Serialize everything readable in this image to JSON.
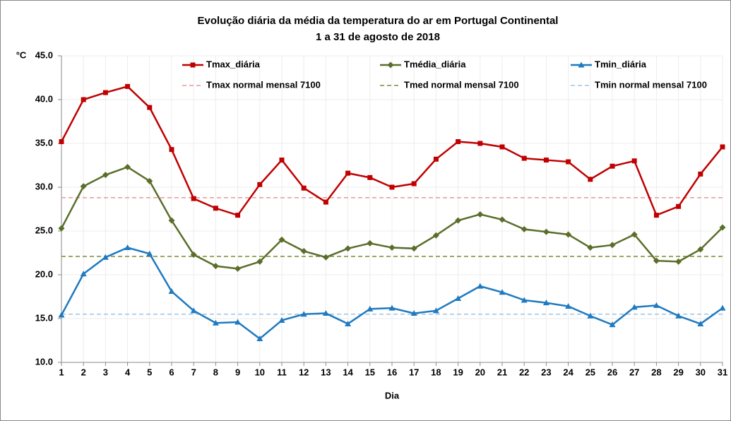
{
  "chart_data": {
    "type": "line",
    "title": "Evolução diária da média da temperatura do ar em Portugal Continental",
    "subtitle": "1 a 31 de agosto de 2018",
    "x_label": "Dia",
    "y_unit": "°C",
    "x": [
      1,
      2,
      3,
      4,
      5,
      6,
      7,
      8,
      9,
      10,
      11,
      12,
      13,
      14,
      15,
      16,
      17,
      18,
      19,
      20,
      21,
      22,
      23,
      24,
      25,
      26,
      27,
      28,
      29,
      30,
      31
    ],
    "xlim": [
      1,
      31
    ],
    "xticks": [
      1,
      2,
      3,
      4,
      5,
      6,
      7,
      8,
      9,
      10,
      11,
      12,
      13,
      14,
      15,
      16,
      17,
      18,
      19,
      20,
      21,
      22,
      23,
      24,
      25,
      26,
      27,
      28,
      29,
      30,
      31
    ],
    "ylim": [
      10,
      45
    ],
    "yticks": [
      {
        "value": 10,
        "label": "10.0"
      },
      {
        "value": 15,
        "label": "15.0"
      },
      {
        "value": 20,
        "label": "20.0"
      },
      {
        "value": 25,
        "label": "25.0"
      },
      {
        "value": 30,
        "label": "30.0"
      },
      {
        "value": 35,
        "label": "35.0"
      },
      {
        "value": 40,
        "label": "40.0"
      },
      {
        "value": 45,
        "label": "45.0"
      }
    ],
    "grid": true,
    "series": [
      {
        "name": "Tmax_diária",
        "color": "#c00000",
        "marker": "square",
        "values": [
          35.2,
          40.0,
          40.8,
          41.5,
          39.1,
          34.3,
          28.7,
          27.6,
          26.8,
          30.3,
          33.1,
          29.9,
          28.3,
          31.6,
          31.1,
          30.0,
          30.4,
          33.2,
          35.2,
          35.0,
          34.6,
          33.3,
          33.1,
          32.9,
          30.9,
          32.4,
          33.0,
          26.8,
          27.8,
          31.5,
          34.6
        ]
      },
      {
        "name": "Tmédia_diária",
        "color": "#5a6e2a",
        "marker": "diamond",
        "values": [
          25.3,
          30.1,
          31.4,
          32.3,
          30.7,
          26.2,
          22.3,
          21.0,
          20.7,
          21.5,
          24.0,
          22.7,
          22.0,
          23.0,
          23.6,
          23.1,
          23.0,
          24.5,
          26.2,
          26.9,
          26.3,
          25.2,
          24.9,
          24.6,
          23.1,
          23.4,
          24.6,
          21.6,
          21.5,
          22.9,
          25.4
        ]
      },
      {
        "name": "Tmin_diária",
        "color": "#1f7ac0",
        "marker": "triangle",
        "values": [
          15.4,
          20.1,
          22.0,
          23.1,
          22.4,
          18.1,
          15.9,
          14.5,
          14.6,
          12.7,
          14.8,
          15.5,
          15.6,
          14.4,
          16.1,
          16.2,
          15.6,
          15.9,
          17.3,
          18.7,
          18.0,
          17.1,
          16.8,
          16.4,
          15.3,
          14.3,
          16.3,
          16.5,
          15.3,
          14.4,
          16.2
        ]
      }
    ],
    "reference_lines": [
      {
        "name": "Tmax normal mensal 7100",
        "color": "#e39a9a",
        "value": 28.8
      },
      {
        "name": "Tmed normal mensal 7100",
        "color": "#7a8a30",
        "value": 22.1
      },
      {
        "name": "Tmin normal mensal 7100",
        "color": "#9dc3e6",
        "value": 15.5
      }
    ]
  }
}
